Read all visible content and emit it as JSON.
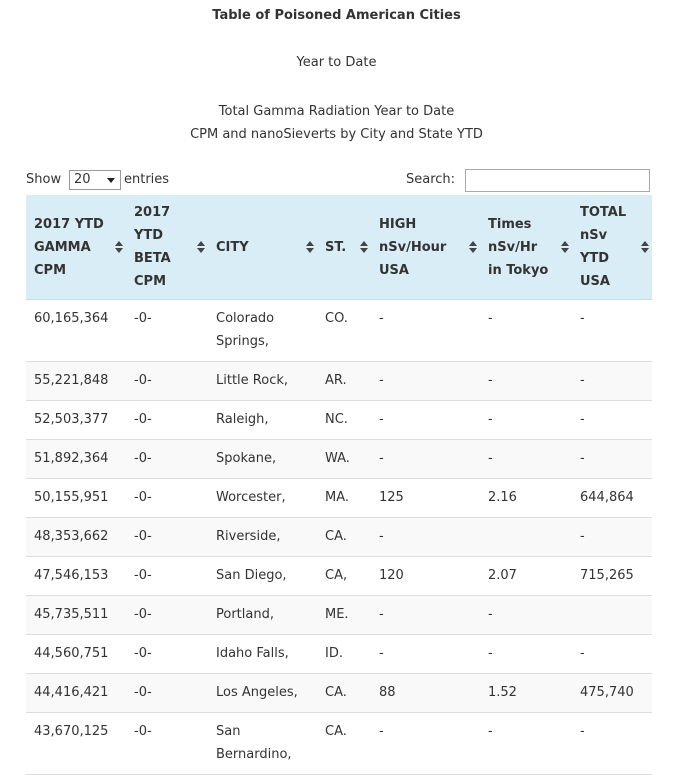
{
  "header": {
    "title": "Table of Poisoned American Cities",
    "subtitle": "Year to Date",
    "description": [
      "Total Gamma Radiation Year to Date",
      "CPM and nanoSieverts by City and State YTD"
    ]
  },
  "controls": {
    "show_label": "Show",
    "page_size": "20",
    "entries_label": "entries",
    "search_label": "Search:"
  },
  "table": {
    "columns": [
      [
        "2017 YTD",
        "GAMMA",
        "CPM"
      ],
      [
        "2017",
        "YTD",
        "BETA",
        "CPM"
      ],
      [
        "CITY"
      ],
      [
        "ST."
      ],
      [
        "HIGH",
        "nSv/Hour",
        "USA"
      ],
      [
        "Times",
        "nSv/Hr",
        "in Tokyo"
      ],
      [
        "TOTAL",
        "nSv",
        "YTD",
        "USA"
      ]
    ],
    "rows": [
      [
        "60,165,364",
        "-0-",
        "Colorado Springs,",
        "CO.",
        "-",
        "-",
        "-"
      ],
      [
        "55,221,848",
        "-0-",
        "Little Rock,",
        "AR.",
        "-",
        "-",
        "-"
      ],
      [
        "52,503,377",
        "-0-",
        "Raleigh,",
        "NC.",
        "-",
        "-",
        "-"
      ],
      [
        "51,892,364",
        "-0-",
        "Spokane,",
        "WA.",
        "-",
        "-",
        "-"
      ],
      [
        "50,155,951",
        "-0-",
        "Worcester,",
        "MA.",
        "125",
        "2.16",
        "644,864"
      ],
      [
        "48,353,662",
        "-0-",
        "Riverside,",
        "CA.",
        "-",
        null,
        "-"
      ],
      [
        "47,546,153",
        "-0-",
        "San Diego,",
        "CA,",
        "120",
        "2.07",
        "715,265"
      ],
      [
        "45,735,511",
        "-0-",
        "Portland,",
        "ME.",
        "-",
        "-",
        null
      ],
      [
        "44,560,751",
        "-0-",
        "Idaho Falls,",
        "ID.",
        "-",
        "-",
        "-"
      ],
      [
        "44,416,421",
        "-0-",
        "Los Angeles,",
        "CA.",
        "88",
        "1.52",
        "475,740"
      ],
      [
        "43,670,125",
        "-0-",
        "San Bernardino,",
        "CA.",
        "-",
        "-",
        "-"
      ]
    ]
  }
}
